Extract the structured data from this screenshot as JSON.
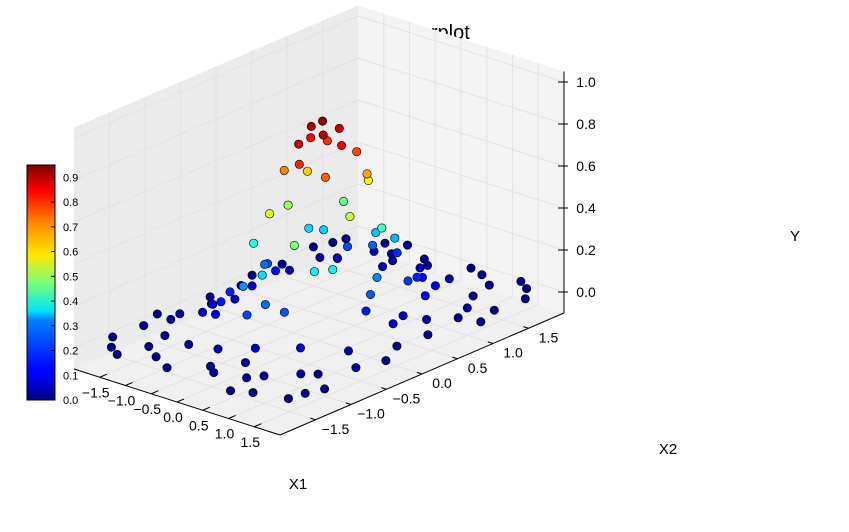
{
  "chart_data": {
    "type": "scatter",
    "projection": "3d",
    "title": "Scatterplot",
    "xlabel": "X1",
    "ylabel": "X2",
    "zlabel": "Y",
    "xlim": [
      -2,
      2
    ],
    "ylim": [
      -2,
      2
    ],
    "zlim": [
      -0.1,
      1.05
    ],
    "grid": true,
    "x_ticks": [
      "−1.5",
      "−1.0",
      "−0.5",
      "0.0",
      "0.5",
      "1.0",
      "1.5"
    ],
    "y_ticks": [
      "−1.5",
      "−1.0",
      "−0.5",
      "0.0",
      "0.5",
      "1.0",
      "1.5"
    ],
    "z_ticks": [
      "0.0",
      "0.2",
      "0.4",
      "0.6",
      "0.8",
      "1.0"
    ],
    "colormap": "jet",
    "colorbar": {
      "placement": "left",
      "range": [
        0,
        0.95
      ],
      "ticks": [
        "0.0",
        "0.1",
        "0.2",
        "0.3",
        "0.4",
        "0.5",
        "0.6",
        "0.7",
        "0.8",
        "0.9"
      ]
    },
    "points": [
      {
        "x": 0.0,
        "y": 0.05,
        "z": 0.94
      },
      {
        "x": 0.15,
        "y": -0.05,
        "z": 0.9
      },
      {
        "x": -0.15,
        "y": 0.0,
        "z": 0.91
      },
      {
        "x": 0.05,
        "y": 0.25,
        "z": 0.88
      },
      {
        "x": -0.05,
        "y": -0.25,
        "z": 0.87
      },
      {
        "x": 0.3,
        "y": 0.1,
        "z": 0.84
      },
      {
        "x": -0.3,
        "y": 0.1,
        "z": 0.83
      },
      {
        "x": 0.1,
        "y": -0.35,
        "z": 0.8
      },
      {
        "x": -0.25,
        "y": 0.3,
        "z": 0.79
      },
      {
        "x": 0.25,
        "y": 0.35,
        "z": 0.77
      },
      {
        "x": 0.4,
        "y": -0.2,
        "z": 0.74
      },
      {
        "x": -0.4,
        "y": -0.2,
        "z": 0.71
      },
      {
        "x": 0.45,
        "y": 0.35,
        "z": 0.68
      },
      {
        "x": -0.5,
        "y": 0.2,
        "z": 0.64
      },
      {
        "x": 0.2,
        "y": 0.55,
        "z": 0.6
      },
      {
        "x": -0.2,
        "y": -0.55,
        "z": 0.57
      },
      {
        "x": 0.6,
        "y": 0.0,
        "z": 0.54
      },
      {
        "x": -0.6,
        "y": 0.0,
        "z": 0.5
      },
      {
        "x": 0.35,
        "y": -0.6,
        "z": 0.47
      },
      {
        "x": -0.35,
        "y": 0.6,
        "z": 0.45
      },
      {
        "x": 0.6,
        "y": 0.45,
        "z": 0.42
      },
      {
        "x": -0.65,
        "y": -0.45,
        "z": 0.38
      },
      {
        "x": 0.75,
        "y": -0.35,
        "z": 0.35
      },
      {
        "x": -0.75,
        "y": 0.4,
        "z": 0.32
      },
      {
        "x": 0.3,
        "y": 0.85,
        "z": 0.29
      },
      {
        "x": -0.3,
        "y": -0.85,
        "z": 0.26
      },
      {
        "x": 0.85,
        "y": 0.2,
        "z": 0.24
      },
      {
        "x": -0.85,
        "y": -0.15,
        "z": 0.22
      },
      {
        "x": 0.5,
        "y": -0.85,
        "z": 0.2
      },
      {
        "x": -0.55,
        "y": 0.8,
        "z": 0.19
      },
      {
        "x": 0.9,
        "y": 0.6,
        "z": 0.17
      },
      {
        "x": -0.9,
        "y": -0.6,
        "z": 0.15
      },
      {
        "x": 0.0,
        "y": 1.1,
        "z": 0.16
      },
      {
        "x": 0.05,
        "y": -1.05,
        "z": 0.18
      },
      {
        "x": 1.05,
        "y": -0.1,
        "z": 0.14
      },
      {
        "x": -1.05,
        "y": 0.15,
        "z": 0.13
      },
      {
        "x": 0.7,
        "y": 0.95,
        "z": 0.12
      },
      {
        "x": -0.7,
        "y": -0.95,
        "z": 0.11
      },
      {
        "x": 1.1,
        "y": 0.7,
        "z": 0.1
      },
      {
        "x": -1.1,
        "y": -0.7,
        "z": 0.09
      },
      {
        "x": 0.95,
        "y": -0.95,
        "z": 0.08
      },
      {
        "x": -0.95,
        "y": 0.95,
        "z": 0.08
      },
      {
        "x": 1.3,
        "y": 0.1,
        "z": 0.07
      },
      {
        "x": -1.3,
        "y": 0.0,
        "z": 0.06
      },
      {
        "x": 0.1,
        "y": 1.35,
        "z": 0.06
      },
      {
        "x": -0.1,
        "y": -1.35,
        "z": 0.05
      },
      {
        "x": 1.4,
        "y": -0.6,
        "z": 0.05
      },
      {
        "x": -1.4,
        "y": 0.6,
        "z": 0.04
      },
      {
        "x": 0.6,
        "y": 1.4,
        "z": 0.04
      },
      {
        "x": -0.6,
        "y": -1.4,
        "z": 0.04
      },
      {
        "x": 1.5,
        "y": 1.0,
        "z": 0.03
      },
      {
        "x": -1.5,
        "y": -1.0,
        "z": 0.03
      },
      {
        "x": 1.0,
        "y": -1.5,
        "z": 0.03
      },
      {
        "x": -1.0,
        "y": 1.5,
        "z": 0.03
      },
      {
        "x": 1.7,
        "y": 0.3,
        "z": 0.02
      },
      {
        "x": -1.7,
        "y": -0.3,
        "z": 0.02
      },
      {
        "x": 0.3,
        "y": -1.7,
        "z": 0.02
      },
      {
        "x": -0.3,
        "y": 1.7,
        "z": 0.02
      },
      {
        "x": 1.8,
        "y": 1.6,
        "z": 0.01
      },
      {
        "x": -1.8,
        "y": -1.6,
        "z": 0.01
      },
      {
        "x": 1.75,
        "y": -1.7,
        "z": 0.01
      },
      {
        "x": -1.75,
        "y": 1.65,
        "z": 0.01
      },
      {
        "x": 1.2,
        "y": 1.3,
        "z": 0.02
      },
      {
        "x": -1.2,
        "y": -1.3,
        "z": 0.02
      },
      {
        "x": 1.3,
        "y": -1.2,
        "z": 0.02
      },
      {
        "x": -1.3,
        "y": 1.2,
        "z": 0.02
      },
      {
        "x": 1.6,
        "y": 0.8,
        "z": 0.02
      },
      {
        "x": -1.6,
        "y": -0.8,
        "z": 0.02
      },
      {
        "x": 0.8,
        "y": -1.6,
        "z": 0.02
      },
      {
        "x": -0.8,
        "y": 1.6,
        "z": 0.02
      },
      {
        "x": 1.85,
        "y": -0.4,
        "z": 0.01
      },
      {
        "x": -1.85,
        "y": 0.4,
        "z": 0.01
      },
      {
        "x": 0.4,
        "y": 1.85,
        "z": 0.01
      },
      {
        "x": -0.4,
        "y": -1.85,
        "z": 0.01
      },
      {
        "x": 1.5,
        "y": -1.1,
        "z": 0.02
      },
      {
        "x": -1.5,
        "y": 1.1,
        "z": 0.02
      },
      {
        "x": 1.1,
        "y": 1.6,
        "z": 0.02
      },
      {
        "x": -1.1,
        "y": -1.6,
        "z": 0.02
      },
      {
        "x": 1.75,
        "y": 1.2,
        "z": 0.01
      },
      {
        "x": -1.75,
        "y": -1.2,
        "z": 0.01
      },
      {
        "x": 1.2,
        "y": -1.8,
        "z": 0.01
      },
      {
        "x": -1.2,
        "y": 1.8,
        "z": 0.01
      },
      {
        "x": 1.9,
        "y": 0.9,
        "z": 0.01
      },
      {
        "x": -1.9,
        "y": -0.9,
        "z": 0.01
      },
      {
        "x": 0.9,
        "y": -1.9,
        "z": 0.01
      },
      {
        "x": -0.9,
        "y": 1.9,
        "z": 0.01
      },
      {
        "x": 1.4,
        "y": 0.5,
        "z": 0.04
      },
      {
        "x": -1.4,
        "y": -0.5,
        "z": 0.04
      },
      {
        "x": 0.5,
        "y": -1.4,
        "z": 0.04
      },
      {
        "x": -0.5,
        "y": 1.4,
        "z": 0.04
      },
      {
        "x": 1.65,
        "y": -0.1,
        "z": 0.02
      },
      {
        "x": -1.65,
        "y": 0.1,
        "z": 0.02
      },
      {
        "x": -0.1,
        "y": 1.6,
        "z": 0.02
      },
      {
        "x": 0.1,
        "y": -1.6,
        "z": 0.02
      },
      {
        "x": 1.9,
        "y": -1.3,
        "z": 0.01
      },
      {
        "x": -1.9,
        "y": 1.3,
        "z": 0.01
      },
      {
        "x": 1.3,
        "y": 1.9,
        "z": 0.01
      },
      {
        "x": -1.3,
        "y": -1.9,
        "z": 0.01
      },
      {
        "x": 1.55,
        "y": 1.8,
        "z": 0.01
      },
      {
        "x": -1.55,
        "y": -1.8,
        "z": 0.01
      },
      {
        "x": 1.8,
        "y": -1.5,
        "z": 0.01
      },
      {
        "x": -1.8,
        "y": 1.5,
        "z": 0.01
      },
      {
        "x": 0.75,
        "y": 1.75,
        "z": 0.02
      },
      {
        "x": -0.75,
        "y": -1.75,
        "z": 0.02
      },
      {
        "x": 1.75,
        "y": -0.75,
        "z": 0.02
      },
      {
        "x": -1.75,
        "y": 0.75,
        "z": 0.02
      },
      {
        "x": 1.15,
        "y": 0.35,
        "z": 0.06
      },
      {
        "x": -1.15,
        "y": -0.35,
        "z": 0.06
      },
      {
        "x": 0.35,
        "y": -1.15,
        "z": 0.06
      },
      {
        "x": -0.35,
        "y": 1.15,
        "z": 0.06
      },
      {
        "x": 0.95,
        "y": 0.95,
        "z": 0.1
      },
      {
        "x": -0.95,
        "y": -0.95,
        "z": 0.1
      },
      {
        "x": 0.2,
        "y": -0.9,
        "z": 0.22
      },
      {
        "x": -0.2,
        "y": 0.9,
        "z": 0.21
      },
      {
        "x": 0.6,
        "y": -0.5,
        "z": 0.35
      },
      {
        "x": -0.6,
        "y": 0.5,
        "z": 0.31
      },
      {
        "x": 0.8,
        "y": 0.8,
        "z": 0.15
      },
      {
        "x": -0.8,
        "y": -0.8,
        "z": 0.14
      },
      {
        "x": 1.0,
        "y": 0.0,
        "z": 0.2
      },
      {
        "x": -1.0,
        "y": 0.0,
        "z": 0.19
      },
      {
        "x": 0.0,
        "y": 0.8,
        "z": 0.3
      },
      {
        "x": 0.0,
        "y": -0.8,
        "z": 0.33
      }
    ]
  }
}
